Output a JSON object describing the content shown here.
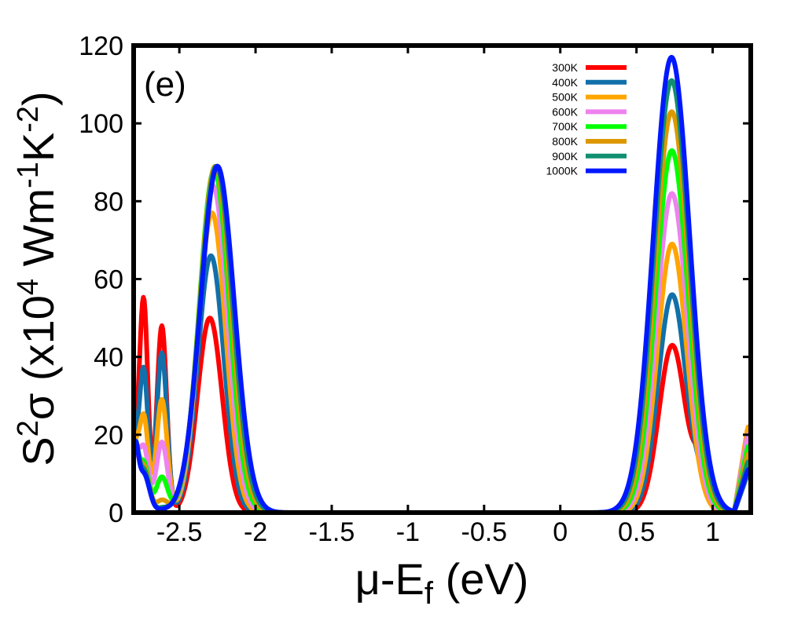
{
  "chart_data": {
    "type": "line",
    "panel_label": "(e)",
    "xlabel": {
      "main": "μ-E",
      "sub": "f",
      "tail": " (eV)"
    },
    "ylabel": {
      "a": "S",
      "a_sup": "2",
      "b": "σ (x10",
      "b_sup": "4",
      "c": " Wm",
      "c_sup": "-1",
      "d": "K",
      "d_sup": "-2",
      "e": ")"
    },
    "xlim": [
      -2.8,
      1.25
    ],
    "ylim": [
      0,
      120
    ],
    "xticks": [
      -2.5,
      -2,
      -1.5,
      -1,
      -0.5,
      0,
      0.5,
      1
    ],
    "xtick_labels": [
      "-2.5",
      "-2",
      "-1.5",
      "-1",
      "-0.5",
      "0",
      "0.5",
      "1"
    ],
    "yticks": [
      0,
      20,
      40,
      60,
      80,
      100,
      120
    ],
    "ytick_labels": [
      "0",
      "20",
      "40",
      "60",
      "80",
      "100",
      "120"
    ],
    "legend_position": "top-right",
    "series": [
      {
        "name": "300K",
        "color": "#ff0000",
        "heights": [
          3,
          55,
          48,
          50,
          43
        ],
        "right": 10,
        "shoulder": 12,
        "wscale": 0.95,
        "edge": 8
      },
      {
        "name": "400K",
        "color": "#1170aa",
        "heights": [
          3,
          37,
          41,
          66,
          56
        ],
        "right": 10,
        "shoulder": 5,
        "wscale": 1.0,
        "edge": 9
      },
      {
        "name": "500K",
        "color": "#ffa500",
        "heights": [
          3,
          25,
          29,
          77,
          69
        ],
        "right": 22,
        "shoulder": 0,
        "wscale": 1.05,
        "edge": 10
      },
      {
        "name": "600K",
        "color": "#ee82ee",
        "heights": [
          3,
          17,
          18,
          84,
          82
        ],
        "right": 20,
        "shoulder": 0,
        "wscale": 1.1,
        "edge": 10
      },
      {
        "name": "700K",
        "color": "#00ff00",
        "heights": [
          3,
          13,
          9,
          88,
          93
        ],
        "right": 17,
        "shoulder": 0,
        "wscale": 1.15,
        "edge": 11
      },
      {
        "name": "800K",
        "color": "#dd9800",
        "heights": [
          3,
          12,
          3,
          89,
          103
        ],
        "right": 15,
        "shoulder": 0,
        "wscale": 1.2,
        "edge": 11
      },
      {
        "name": "900K",
        "color": "#109070",
        "heights": [
          3,
          11,
          1,
          89,
          111
        ],
        "right": 13,
        "shoulder": 0,
        "wscale": 1.25,
        "edge": 12
      },
      {
        "name": "1000K",
        "color": "#0018ff",
        "heights": [
          3,
          10,
          0.5,
          89,
          117
        ],
        "right": 11,
        "shoulder": 0,
        "wscale": 1.3,
        "edge": 12
      }
    ]
  }
}
